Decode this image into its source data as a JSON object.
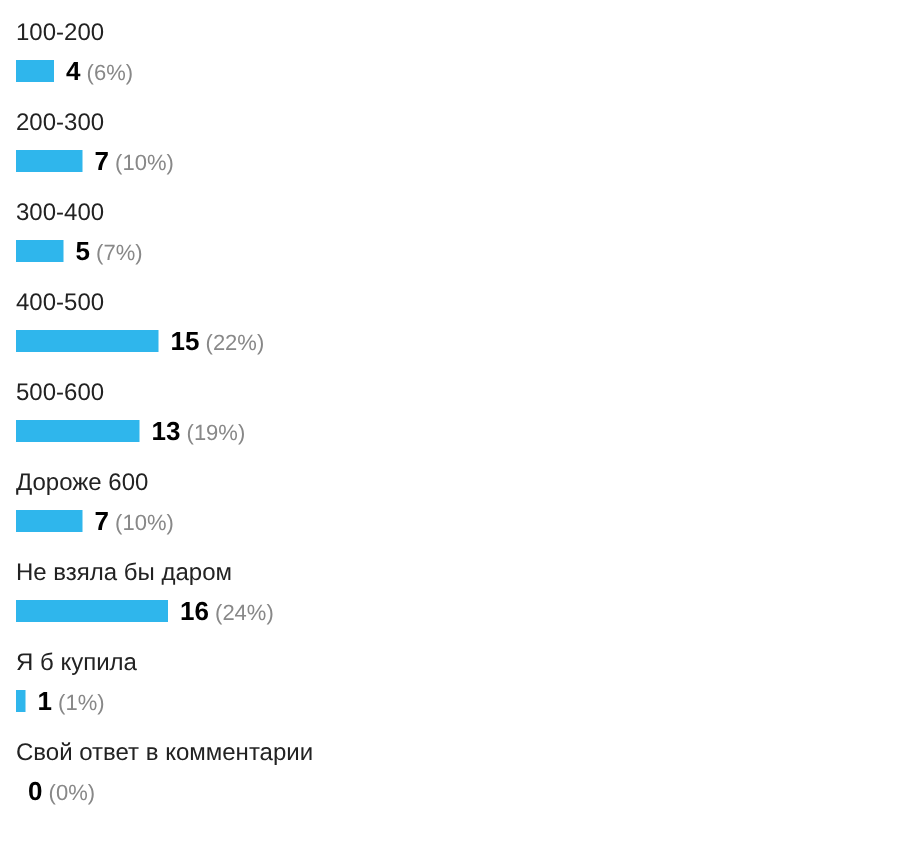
{
  "chart_data": {
    "type": "bar",
    "orientation": "horizontal",
    "color": "#2fb6ec",
    "categories": [
      "100-200",
      "200-300",
      "300-400",
      "400-500",
      "500-600",
      "Дороже 600",
      "Не взяла бы даром",
      "Я б купила",
      "Свой ответ в комментарии"
    ],
    "values": [
      4,
      7,
      5,
      15,
      13,
      7,
      16,
      1,
      0
    ],
    "value_labels": [
      "4 (6%)",
      "7 (10%)",
      "5 (7%)",
      "15 (22%)",
      "13 (19%)",
      "7 (10%)",
      "16 (24%)",
      "1 (1%)",
      "0 (0%)"
    ]
  }
}
